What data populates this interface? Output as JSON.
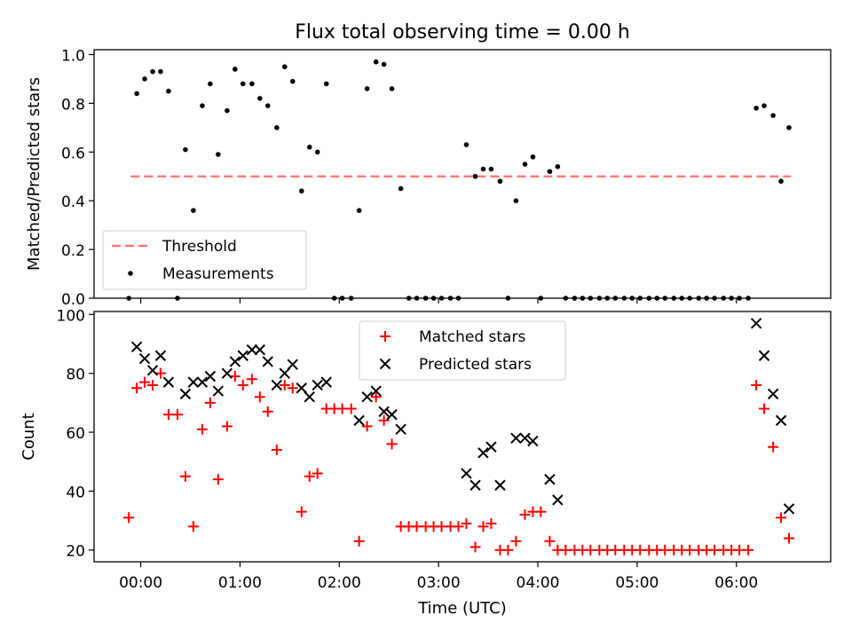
{
  "figure": {
    "title": "Flux total observing time = 0.00 h"
  },
  "colors": {
    "threshold": "#ff7070",
    "measurements": "#000000",
    "matched": "#ff0000",
    "predicted": "#000000"
  },
  "chart_data": [
    {
      "type": "scatter",
      "panel": "top",
      "title": "Flux total observing time = 0.00 h",
      "xlabel": "",
      "ylabel": "Matched/Predicted stars",
      "xlim": [
        -0.47,
        6.95
      ],
      "ylim": [
        0.0,
        1.02
      ],
      "yticks": [
        0.0,
        0.2,
        0.4,
        0.6,
        0.8,
        1.0
      ],
      "ytick_labels": [
        "0.0",
        "0.2",
        "0.4",
        "0.6",
        "0.8",
        "1.0"
      ],
      "xticks": [
        0,
        1,
        2,
        3,
        4,
        5,
        6
      ],
      "grid": false,
      "legend": {
        "placement": "lower-left",
        "entries": [
          "Threshold",
          "Measurements"
        ]
      },
      "series": [
        {
          "name": "Threshold",
          "kind": "dashed-line",
          "x": [
            -0.1,
            6.55
          ],
          "y": [
            0.5,
            0.5
          ]
        },
        {
          "name": "Measurements",
          "kind": "dots",
          "x": [
            -0.12,
            -0.04,
            0.04,
            0.12,
            0.2,
            0.28,
            0.37,
            0.45,
            0.53,
            0.62,
            0.7,
            0.78,
            0.87,
            0.95,
            1.03,
            1.12,
            1.2,
            1.28,
            1.37,
            1.45,
            1.53,
            1.62,
            1.7,
            1.78,
            1.87,
            1.95,
            2.03,
            2.12,
            2.2,
            2.28,
            2.37,
            2.45,
            2.53,
            2.62,
            2.7,
            2.78,
            2.87,
            2.95,
            3.03,
            3.12,
            3.2,
            3.28,
            3.37,
            3.45,
            3.53,
            3.62,
            3.7,
            3.78,
            3.87,
            3.95,
            4.03,
            4.12,
            4.2,
            4.28,
            4.37,
            4.45,
            4.53,
            4.62,
            4.7,
            4.78,
            4.87,
            4.95,
            5.03,
            5.12,
            5.2,
            5.28,
            5.37,
            5.45,
            5.53,
            5.62,
            5.7,
            5.78,
            5.87,
            5.95,
            6.03,
            6.12,
            6.2,
            6.28,
            6.37,
            6.45,
            6.53
          ],
          "y": [
            0.0,
            0.84,
            0.9,
            0.93,
            0.93,
            0.85,
            0.0,
            0.61,
            0.36,
            0.79,
            0.88,
            0.59,
            0.77,
            0.94,
            0.88,
            0.88,
            0.82,
            0.79,
            0.7,
            0.95,
            0.89,
            0.44,
            0.62,
            0.6,
            0.88,
            0.0,
            0.0,
            0.0,
            0.36,
            0.86,
            0.97,
            0.96,
            0.86,
            0.45,
            0.0,
            0.0,
            0.0,
            0.0,
            0.0,
            0.0,
            0.0,
            0.63,
            0.5,
            0.53,
            0.53,
            0.48,
            0.0,
            0.4,
            0.55,
            0.58,
            0.0,
            0.52,
            0.54,
            0.0,
            0.0,
            0.0,
            0.0,
            0.0,
            0.0,
            0.0,
            0.0,
            0.0,
            0.0,
            0.0,
            0.0,
            0.0,
            0.0,
            0.0,
            0.0,
            0.0,
            0.0,
            0.0,
            0.0,
            0.0,
            0.0,
            0.0,
            0.78,
            0.79,
            0.75,
            0.48,
            0.7
          ]
        }
      ]
    },
    {
      "type": "scatter",
      "panel": "bottom",
      "xlabel": "Time (UTC)",
      "ylabel": "Count",
      "xlim": [
        -0.47,
        6.95
      ],
      "ylim": [
        16,
        101
      ],
      "yticks": [
        20,
        40,
        60,
        80,
        100
      ],
      "ytick_labels": [
        "20",
        "40",
        "60",
        "80",
        "100"
      ],
      "xticks": [
        0,
        1,
        2,
        3,
        4,
        5,
        6
      ],
      "xtick_labels": [
        "00:00",
        "01:00",
        "02:00",
        "03:00",
        "04:00",
        "05:00",
        "06:00"
      ],
      "grid": false,
      "legend": {
        "placement": "top-center",
        "entries": [
          "Matched stars",
          "Predicted stars"
        ]
      },
      "series": [
        {
          "name": "Matched stars",
          "kind": "plus",
          "x": [
            -0.12,
            -0.04,
            0.04,
            0.12,
            0.2,
            0.28,
            0.37,
            0.45,
            0.53,
            0.62,
            0.7,
            0.78,
            0.87,
            0.95,
            1.03,
            1.12,
            1.2,
            1.28,
            1.37,
            1.45,
            1.53,
            1.62,
            1.7,
            1.78,
            1.87,
            1.95,
            2.03,
            2.12,
            2.2,
            2.28,
            2.37,
            2.45,
            2.53,
            2.62,
            2.7,
            2.78,
            2.87,
            2.95,
            3.03,
            3.12,
            3.2,
            3.28,
            3.37,
            3.45,
            3.53,
            3.62,
            3.7,
            3.78,
            3.87,
            3.95,
            4.03,
            4.12,
            4.2,
            4.28,
            4.37,
            4.45,
            4.53,
            4.62,
            4.7,
            4.78,
            4.87,
            4.95,
            5.03,
            5.12,
            5.2,
            5.28,
            5.37,
            5.45,
            5.53,
            5.62,
            5.7,
            5.78,
            5.87,
            5.95,
            6.03,
            6.12,
            6.2,
            6.28,
            6.37,
            6.45,
            6.53
          ],
          "y": [
            31,
            75,
            77,
            76,
            80,
            66,
            66,
            45,
            28,
            61,
            70,
            44,
            62,
            79,
            76,
            78,
            72,
            67,
            54,
            76,
            75,
            33,
            45,
            46,
            68,
            68,
            68,
            68,
            23,
            62,
            72,
            64,
            56,
            28,
            28,
            28,
            28,
            28,
            28,
            28,
            28,
            29,
            21,
            28,
            29,
            20,
            20,
            23,
            32,
            33,
            33,
            23,
            20,
            20,
            20,
            20,
            20,
            20,
            20,
            20,
            20,
            20,
            20,
            20,
            20,
            20,
            20,
            20,
            20,
            20,
            20,
            20,
            20,
            20,
            20,
            20,
            76,
            68,
            55,
            31,
            24
          ]
        },
        {
          "name": "Predicted stars",
          "kind": "x",
          "x": [
            -0.04,
            0.04,
            0.12,
            0.2,
            0.28,
            0.45,
            0.53,
            0.62,
            0.7,
            0.78,
            0.87,
            0.95,
            1.03,
            1.12,
            1.2,
            1.28,
            1.37,
            1.45,
            1.53,
            1.62,
            1.7,
            1.78,
            1.87,
            2.2,
            2.28,
            2.37,
            2.45,
            2.53,
            2.62,
            3.28,
            3.37,
            3.45,
            3.53,
            3.62,
            3.78,
            3.87,
            3.95,
            4.12,
            4.2,
            6.2,
            6.28,
            6.37,
            6.45,
            6.53
          ],
          "y": [
            89,
            85,
            81,
            86,
            77,
            73,
            77,
            77,
            79,
            74,
            80,
            84,
            86,
            88,
            88,
            84,
            76,
            80,
            83,
            75,
            72,
            76,
            77,
            64,
            72,
            74,
            67,
            66,
            61,
            46,
            42,
            53,
            55,
            42,
            58,
            58,
            57,
            44,
            37,
            97,
            86,
            73,
            64,
            34
          ]
        }
      ]
    }
  ]
}
